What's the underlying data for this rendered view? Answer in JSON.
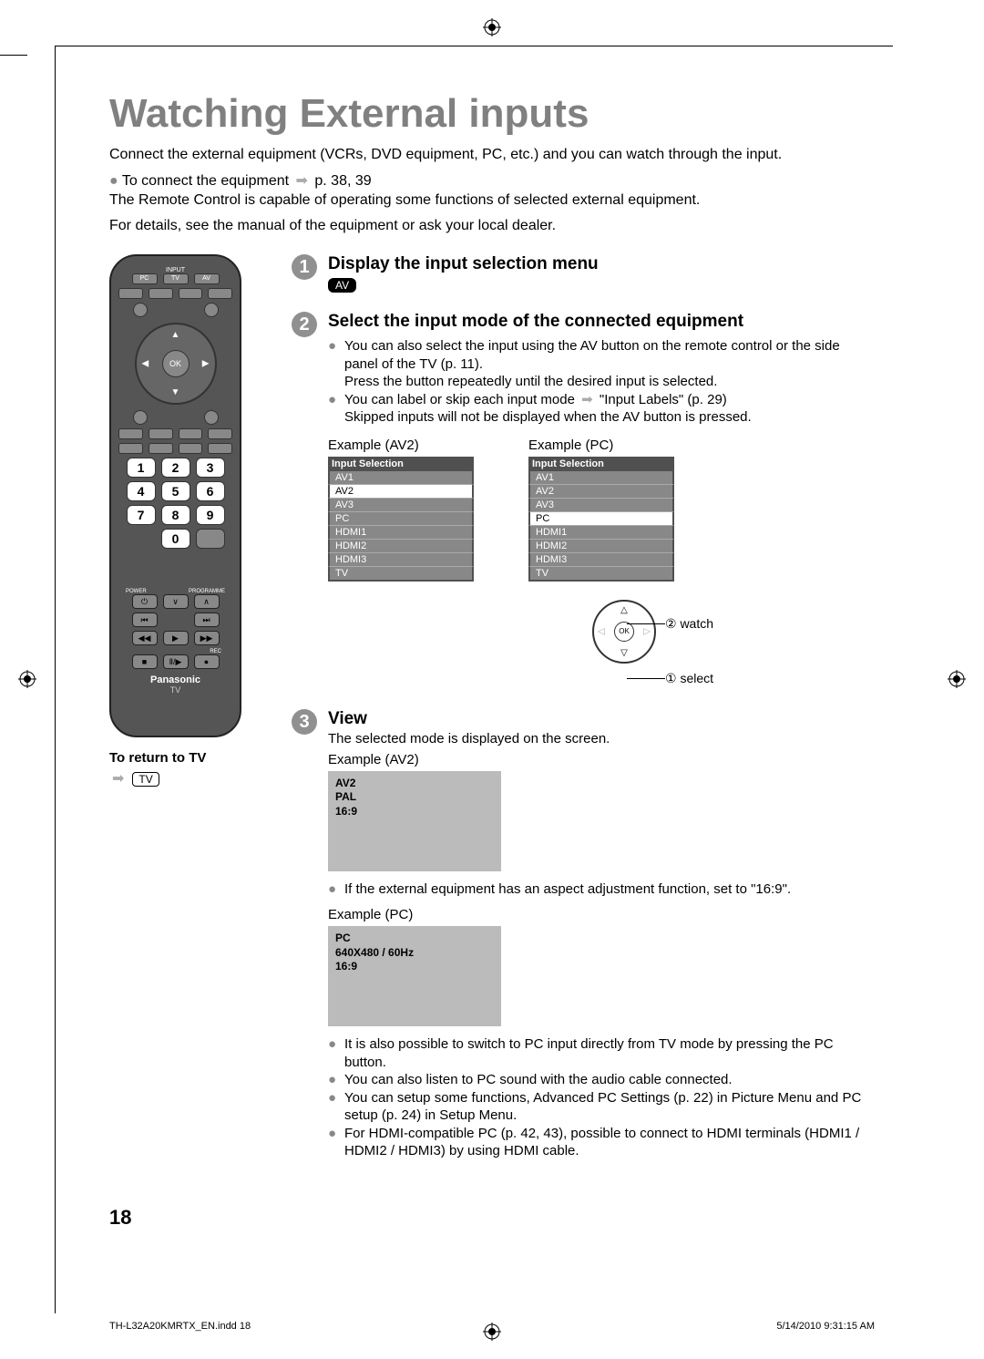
{
  "page": {
    "title": "Watching External inputs",
    "intro": "Connect the external equipment (VCRs, DVD equipment, PC, etc.) and you can watch through the input.",
    "connect_line": "To connect the equipment",
    "connect_ref": "p. 38, 39",
    "remote_line1": "The Remote Control is capable of operating some functions of selected external equipment.",
    "remote_line2": "For details, see the manual of the equipment or ask your local dealer.",
    "page_number": "18",
    "footer_file": "TH-L32A20KMRTX_EN.indd   18",
    "footer_time": "5/14/2010   9:31:15 AM"
  },
  "remote": {
    "input_label": "INPUT",
    "pc": "PC",
    "tv": "TV",
    "av": "AV",
    "ok": "OK",
    "nums": [
      "1",
      "2",
      "3",
      "4",
      "5",
      "6",
      "7",
      "8",
      "9",
      "0"
    ],
    "power": "POWER",
    "programme": "PROGRAMME",
    "rec": "REC",
    "brand": "Panasonic",
    "brand_sub": "TV"
  },
  "below_remote": {
    "title": "To return to TV",
    "badge": "TV"
  },
  "step1": {
    "num": "1",
    "title": "Display the input selection menu",
    "badge": "AV"
  },
  "step2": {
    "num": "2",
    "title": "Select the input mode of the connected equipment",
    "b1": "You can also select the input using the AV button on the remote control or the side panel of the TV (p. 11).",
    "b1b": "Press the button repeatedly until the desired input is selected.",
    "b2": "You can label or skip each input mode",
    "b2ref": "\"Input Labels\" (p. 29)",
    "b2b": "Skipped inputs will not be displayed when the AV button is pressed.",
    "ex1_label": "Example (AV2)",
    "ex2_label": "Example (PC)",
    "menu_header": "Input Selection",
    "menu_items": [
      "AV1",
      "AV2",
      "AV3",
      "PC",
      "HDMI1",
      "HDMI2",
      "HDMI3",
      "TV"
    ],
    "menu1_active_index": 1,
    "menu2_active_index": 3,
    "dpad_ok": "OK",
    "watch_label": "② watch",
    "select_label": "① select"
  },
  "step3": {
    "num": "3",
    "title": "View",
    "desc": "The selected mode is displayed on the screen.",
    "ex1_label": "Example (AV2)",
    "box1_l1": "AV2",
    "box1_l2": "PAL",
    "box1_l3": "16:9",
    "b1": "If the external equipment has an aspect adjustment function, set to \"16:9\".",
    "ex2_label": "Example (PC)",
    "box2_l1": "PC",
    "box2_l2": "640X480 / 60Hz",
    "box2_l3": "16:9",
    "b2": "It is also possible to switch to PC input directly from TV mode by pressing the PC button.",
    "b3": "You can also listen to PC sound with the audio cable connected.",
    "b4": "You can setup some functions, Advanced PC Settings (p. 22) in Picture Menu and PC setup (p. 24) in Setup Menu.",
    "b5": "For HDMI-compatible PC (p. 42, 43), possible to connect to HDMI terminals (HDMI1 / HDMI2 / HDMI3) by using HDMI cable."
  },
  "colors": {
    "heading": "#808080",
    "step_circle": "#909090",
    "menu_row": "#888888",
    "menu_head": "#505050",
    "screen_box": "#bbbbbb"
  }
}
